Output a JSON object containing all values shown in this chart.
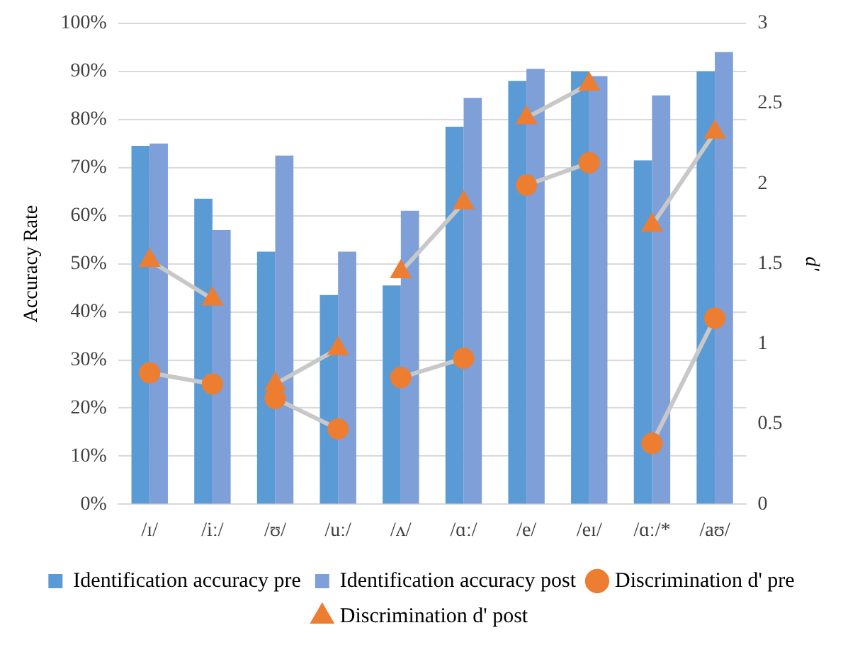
{
  "chart_data": {
    "type": "bar",
    "categories": [
      "/ɪ/",
      "/iː/",
      "/ʊ/",
      "/uː/",
      "/ʌ/",
      "/ɑː/",
      "/e/",
      "/eɪ/",
      "/ɑː/*",
      "/aʊ/"
    ],
    "ylabel": "Accuracy Rate",
    "y2label": "d'",
    "ylim": [
      0,
      100
    ],
    "yticks": [
      {
        "value": 0,
        "label": "0%"
      },
      {
        "value": 10,
        "label": "10%"
      },
      {
        "value": 20,
        "label": "20%"
      },
      {
        "value": 30,
        "label": "30%"
      },
      {
        "value": 40,
        "label": "40%"
      },
      {
        "value": 50,
        "label": "50%"
      },
      {
        "value": 60,
        "label": "60%"
      },
      {
        "value": 70,
        "label": "70%"
      },
      {
        "value": 80,
        "label": "80%"
      },
      {
        "value": 90,
        "label": "90%"
      },
      {
        "value": 100,
        "label": "100%"
      }
    ],
    "y2lim": [
      0,
      3
    ],
    "y2ticks": [
      0,
      {
        "value": 0.5,
        "label": "0.5"
      },
      1,
      {
        "value": 1.5,
        "label": "1.5"
      },
      2,
      {
        "value": 2.5,
        "label": "2.5"
      },
      3
    ],
    "grid": "y",
    "legend": "bottom",
    "series": [
      {
        "name": "Identification accuracy pre",
        "color": "#5b9bd5",
        "values": [
          74.5,
          63.5,
          52.5,
          43.5,
          45.5,
          78.5,
          88,
          90,
          71.5,
          90
        ]
      },
      {
        "name": "Identification accuracy post",
        "color": "#7f9fd8",
        "values": [
          75,
          57,
          72.5,
          52.5,
          61,
          84.5,
          90.5,
          89,
          85,
          94
        ]
      },
      {
        "name": "Discrimination d' pre",
        "type": "line",
        "axis": "y2",
        "marker": "circle",
        "color": "#ed7d31",
        "values": [
          0.82,
          0.75,
          0.66,
          0.47,
          0.79,
          0.91,
          1.99,
          2.13,
          0.38,
          1.16
        ]
      },
      {
        "name": "Discrimination d' post",
        "type": "line",
        "axis": "y2",
        "marker": "triangle",
        "color": "#ed7d31",
        "values": [
          1.52,
          1.28,
          0.75,
          0.97,
          1.45,
          1.88,
          2.41,
          2.62,
          1.74,
          2.32
        ]
      }
    ]
  }
}
